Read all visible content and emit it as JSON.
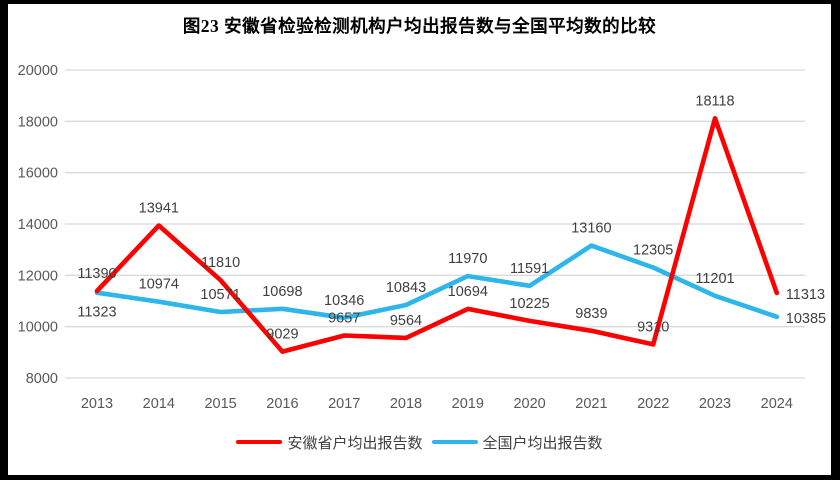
{
  "chart_data": {
    "type": "line",
    "title": "图23 安徽省检验检测机构户均出报告数与全国平均数的比较",
    "categories": [
      "2013",
      "2014",
      "2015",
      "2016",
      "2017",
      "2018",
      "2019",
      "2020",
      "2021",
      "2022",
      "2023",
      "2024"
    ],
    "series": [
      {
        "name": "安徽省户均出报告数",
        "color": "#FF0000",
        "values": [
          11390,
          13941,
          11810,
          9029,
          9657,
          9564,
          10694,
          10225,
          9839,
          9310,
          18118,
          11313
        ],
        "label_positions": {
          "11": "right"
        }
      },
      {
        "name": "全国户均出报告数",
        "color": "#2EB6EA",
        "values": [
          11323,
          10974,
          10571,
          10698,
          10346,
          10843,
          11970,
          11591,
          13160,
          12305,
          11201,
          10385
        ],
        "label_positions": {
          "0": "below",
          "11": "right"
        }
      }
    ],
    "ylim": [
      8000,
      20000
    ],
    "yticks": [
      8000,
      10000,
      12000,
      14000,
      16000,
      18000,
      20000
    ],
    "grid": "horizontal-only",
    "legend_position": "bottom",
    "colors": {
      "gridline": "#DBDBDB",
      "axis_text": "#595959",
      "data_label": "#404040",
      "frame": "#000000",
      "background": "#FFFFFF"
    }
  }
}
